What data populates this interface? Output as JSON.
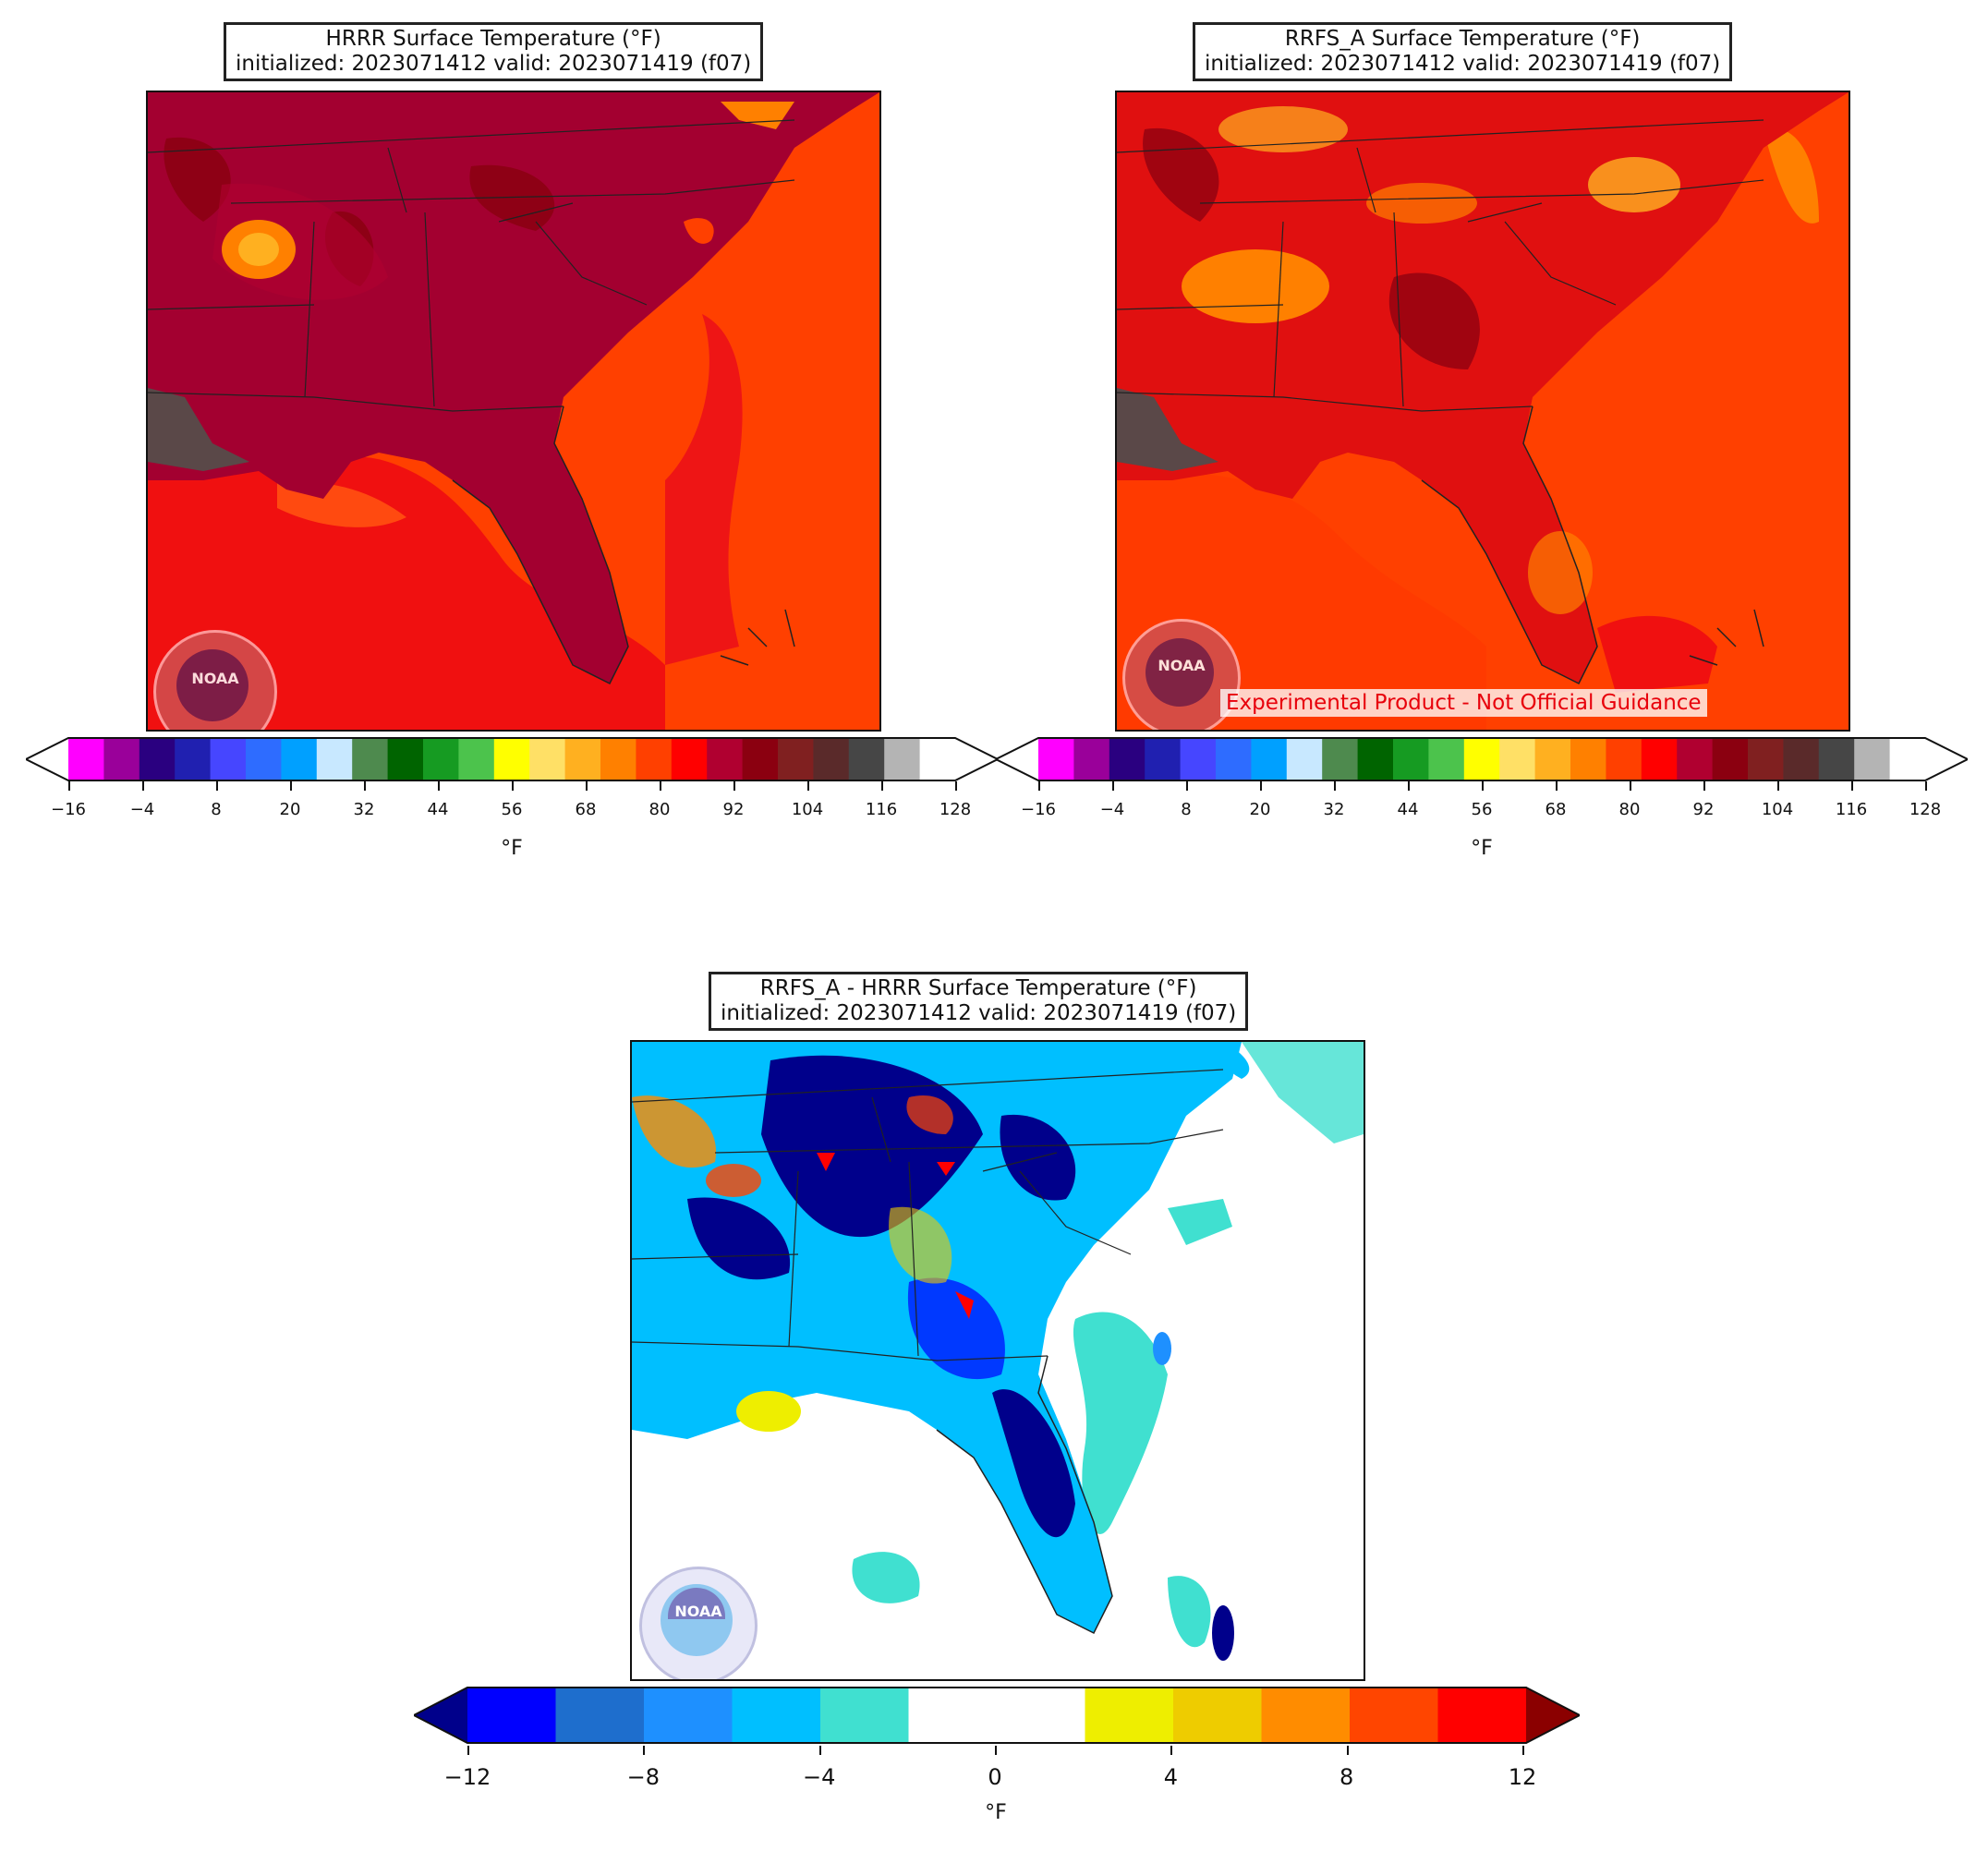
{
  "panels": {
    "hrrr": {
      "title_line1": "HRRR Surface Temperature (°F)",
      "title_line2": "initialized: 2023071412 valid: 2023071419 (f07)"
    },
    "rrfs": {
      "title_line1": "RRFS_A Surface Temperature (°F)",
      "title_line2": "initialized: 2023071412 valid: 2023071419 (f07)",
      "watermark": "Experimental Product - Not Official Guidance"
    },
    "diff": {
      "title_line1": "RRFS_A - HRRR Surface Temperature (°F)",
      "title_line2": "initialized: 2023071412 valid: 2023071419 (f07)"
    }
  },
  "logo": {
    "text": "NOAA"
  },
  "temp_colorbar": {
    "unit": "°F",
    "ticks": [
      "−16",
      "−4",
      "8",
      "20",
      "32",
      "44",
      "56",
      "68",
      "80",
      "92",
      "104",
      "116",
      "128"
    ],
    "colors": [
      "#ff00ff",
      "#9a009a",
      "#2a0080",
      "#2020b0",
      "#4646ff",
      "#2e6cff",
      "#00a0ff",
      "#c8e8ff",
      "#4e8a4e",
      "#006400",
      "#169b22",
      "#4cc34c",
      "#ffff00",
      "#ffe066",
      "#ffb020",
      "#ff8000",
      "#ff4000",
      "#ff0000",
      "#b00030",
      "#8b0010",
      "#802020",
      "#5a2a2a",
      "#464646",
      "#b4b4b4",
      "#ffffff"
    ],
    "extend_min_color": "#ffffff",
    "extend_max_color": "#ffffff"
  },
  "diff_colorbar": {
    "unit": "°F",
    "ticks": [
      "−12",
      "−8",
      "−4",
      "0",
      "4",
      "8",
      "12"
    ],
    "colors": [
      "#0000ff",
      "#1e6ecd",
      "#1e90ff",
      "#00bfff",
      "#40e0d0",
      "#ffffff",
      "#ffffff",
      "#eeee00",
      "#eecc00",
      "#ff8c00",
      "#ff4500",
      "#ff0000"
    ],
    "extend_min_color": "#00008b",
    "extend_max_color": "#8b0000"
  }
}
